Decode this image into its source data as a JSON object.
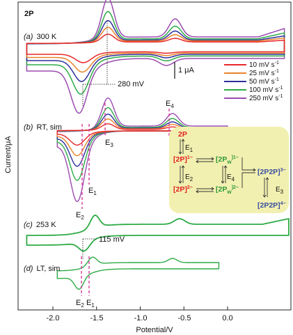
{
  "compound_label": "2P",
  "axes": {
    "x": {
      "label": "Potential/V",
      "ticks": [
        "-2.0",
        "-1.5",
        "-1.0",
        "-0.5",
        "0.0"
      ],
      "tick_values": [
        -2.0,
        -1.5,
        -1.0,
        -0.5,
        0.0
      ],
      "range": [
        -2.3,
        0.7
      ]
    },
    "y": {
      "label": "Current/μA"
    }
  },
  "scale_bar_label": "1 μA",
  "colors": {
    "10 mV s-1": "#e8272a",
    "25 mV s-1": "#e8832a",
    "50 mV s-1": "#2e2f9c",
    "100 mV s-1": "#2eab46",
    "250 mV s-1": "#9b4bb0",
    "guide": "#d63b9a",
    "scheme_bg": "#f2f0b0",
    "red_species": "#e02020",
    "green_species": "#2f9a3a",
    "blue_species": "#3a4fa0"
  },
  "legend": {
    "entries": [
      {
        "value": "10",
        "unit": "mV s",
        "exp": "-1",
        "color": "#e8272a"
      },
      {
        "value": "25",
        "unit": "mV s",
        "exp": "-1",
        "color": "#e8832a"
      },
      {
        "value": "50",
        "unit": "mV s",
        "exp": "-1",
        "color": "#2e2f9c"
      },
      {
        "value": "100",
        "unit": "mV s",
        "exp": "-1",
        "color": "#2eab46"
      },
      {
        "value": "250",
        "unit": "mV s",
        "exp": "-1",
        "color": "#9b4bb0"
      }
    ]
  },
  "panels": {
    "a": {
      "tag": "(a)",
      "text": "300 K",
      "annotation": "280 mV"
    },
    "b": {
      "tag": "(b)",
      "text": "RT, sim",
      "labels": {
        "E1": "E",
        "E1_sub": "1",
        "E2": "E",
        "E2_sub": "2",
        "E3": "E",
        "E3_sub": "3",
        "E4": "E",
        "E4_sub": "4"
      }
    },
    "c": {
      "tag": "(c)",
      "text": "253 K",
      "annotation": "115 mV"
    },
    "d": {
      "tag": "(d)",
      "text": "LT, sim",
      "labels": {
        "E2": "E",
        "E2_sub": "2",
        "E1": "E",
        "E1_sub": "1"
      }
    }
  },
  "scheme": {
    "top": "2P",
    "e1": "E",
    "e1_sub": "1",
    "p1": "[2P]",
    "p1_sup": "1−",
    "pw1": "[2P",
    "pw1_sub": "w",
    "pw1_sup": "]1−",
    "e2": "E",
    "e2_sub": "2",
    "e4": "E",
    "e4_sub": "4",
    "d3": "[2P2P]",
    "d3_sup": "3−",
    "p2": "[2P]",
    "p2_sup": "2−",
    "pw2": "[2P",
    "pw2_sub": "w",
    "pw2_sup": "]2−",
    "e3": "E",
    "e3_sub": "3",
    "d4": "[2P2P]",
    "d4_sup": "4−"
  },
  "chart_data": {
    "type": "line",
    "xlabel": "Potential/V",
    "ylabel": "Current/μA",
    "x_ticks": [
      -2.0,
      -1.5,
      -1.0,
      -0.5,
      0.0
    ],
    "panels": [
      {
        "id": "a",
        "label": "(a) 300 K",
        "series": [
          {
            "name": "10 mV s-1",
            "color": "#e8272a",
            "x_range": [
              -2.3,
              0.65
            ],
            "cathodic_peak_V": -1.65,
            "anodic_peak_V": -1.37,
            "second_peak_V": -0.6,
            "rel_amplitude": 0.2
          },
          {
            "name": "25 mV s-1",
            "color": "#e8832a",
            "x_range": [
              -2.3,
              0.65
            ],
            "cathodic_peak_V": -1.66,
            "anodic_peak_V": -1.37,
            "second_peak_V": -0.6,
            "rel_amplitude": 0.35
          },
          {
            "name": "50 mV s-1",
            "color": "#2e2f9c",
            "x_range": [
              -2.3,
              0.65
            ],
            "cathodic_peak_V": -1.67,
            "anodic_peak_V": -1.37,
            "second_peak_V": -0.6,
            "rel_amplitude": 0.5
          },
          {
            "name": "100 mV s-1",
            "color": "#2eab46",
            "x_range": [
              -2.3,
              0.65
            ],
            "cathodic_peak_V": -1.68,
            "anodic_peak_V": -1.37,
            "second_peak_V": -0.6,
            "rel_amplitude": 0.7
          },
          {
            "name": "250 mV s-1",
            "color": "#9b4bb0",
            "x_range": [
              -2.3,
              0.65
            ],
            "cathodic_peak_V": -1.7,
            "anodic_peak_V": -1.37,
            "second_peak_V": -0.6,
            "rel_amplitude": 1.0
          }
        ],
        "peak_separation_mV": 280
      },
      {
        "id": "b",
        "label": "(b) RT, sim",
        "series": [
          {
            "name": "10 mV s-1",
            "color": "#e8272a",
            "x_range": [
              -1.95,
              0.0
            ],
            "rel_amplitude": 0.2
          },
          {
            "name": "25 mV s-1",
            "color": "#e8832a",
            "x_range": [
              -1.95,
              0.0
            ],
            "rel_amplitude": 0.35
          },
          {
            "name": "50 mV s-1",
            "color": "#2e2f9c",
            "x_range": [
              -1.95,
              0.0
            ],
            "rel_amplitude": 0.5
          },
          {
            "name": "100 mV s-1",
            "color": "#2eab46",
            "x_range": [
              -1.95,
              0.0
            ],
            "rel_amplitude": 0.7
          },
          {
            "name": "250 mV s-1",
            "color": "#9b4bb0",
            "x_range": [
              -1.95,
              0.0
            ],
            "rel_amplitude": 1.0
          }
        ],
        "potentials_V": {
          "E1": -1.57,
          "E2": -1.65,
          "E3": -1.37,
          "E4": -0.68
        }
      },
      {
        "id": "c",
        "label": "(c) 253 K",
        "series": [
          {
            "name": "",
            "color": "#2eab46",
            "x_range": [
              -2.3,
              0.7
            ]
          }
        ],
        "peak_separation_mV": 115
      },
      {
        "id": "d",
        "label": "(d) LT, sim",
        "series": [
          {
            "name": "",
            "color": "#2eab46",
            "x_range": [
              -1.95,
              -0.1
            ]
          }
        ],
        "potentials_V": {
          "E2": -1.65,
          "E1": -1.57
        }
      }
    ]
  }
}
